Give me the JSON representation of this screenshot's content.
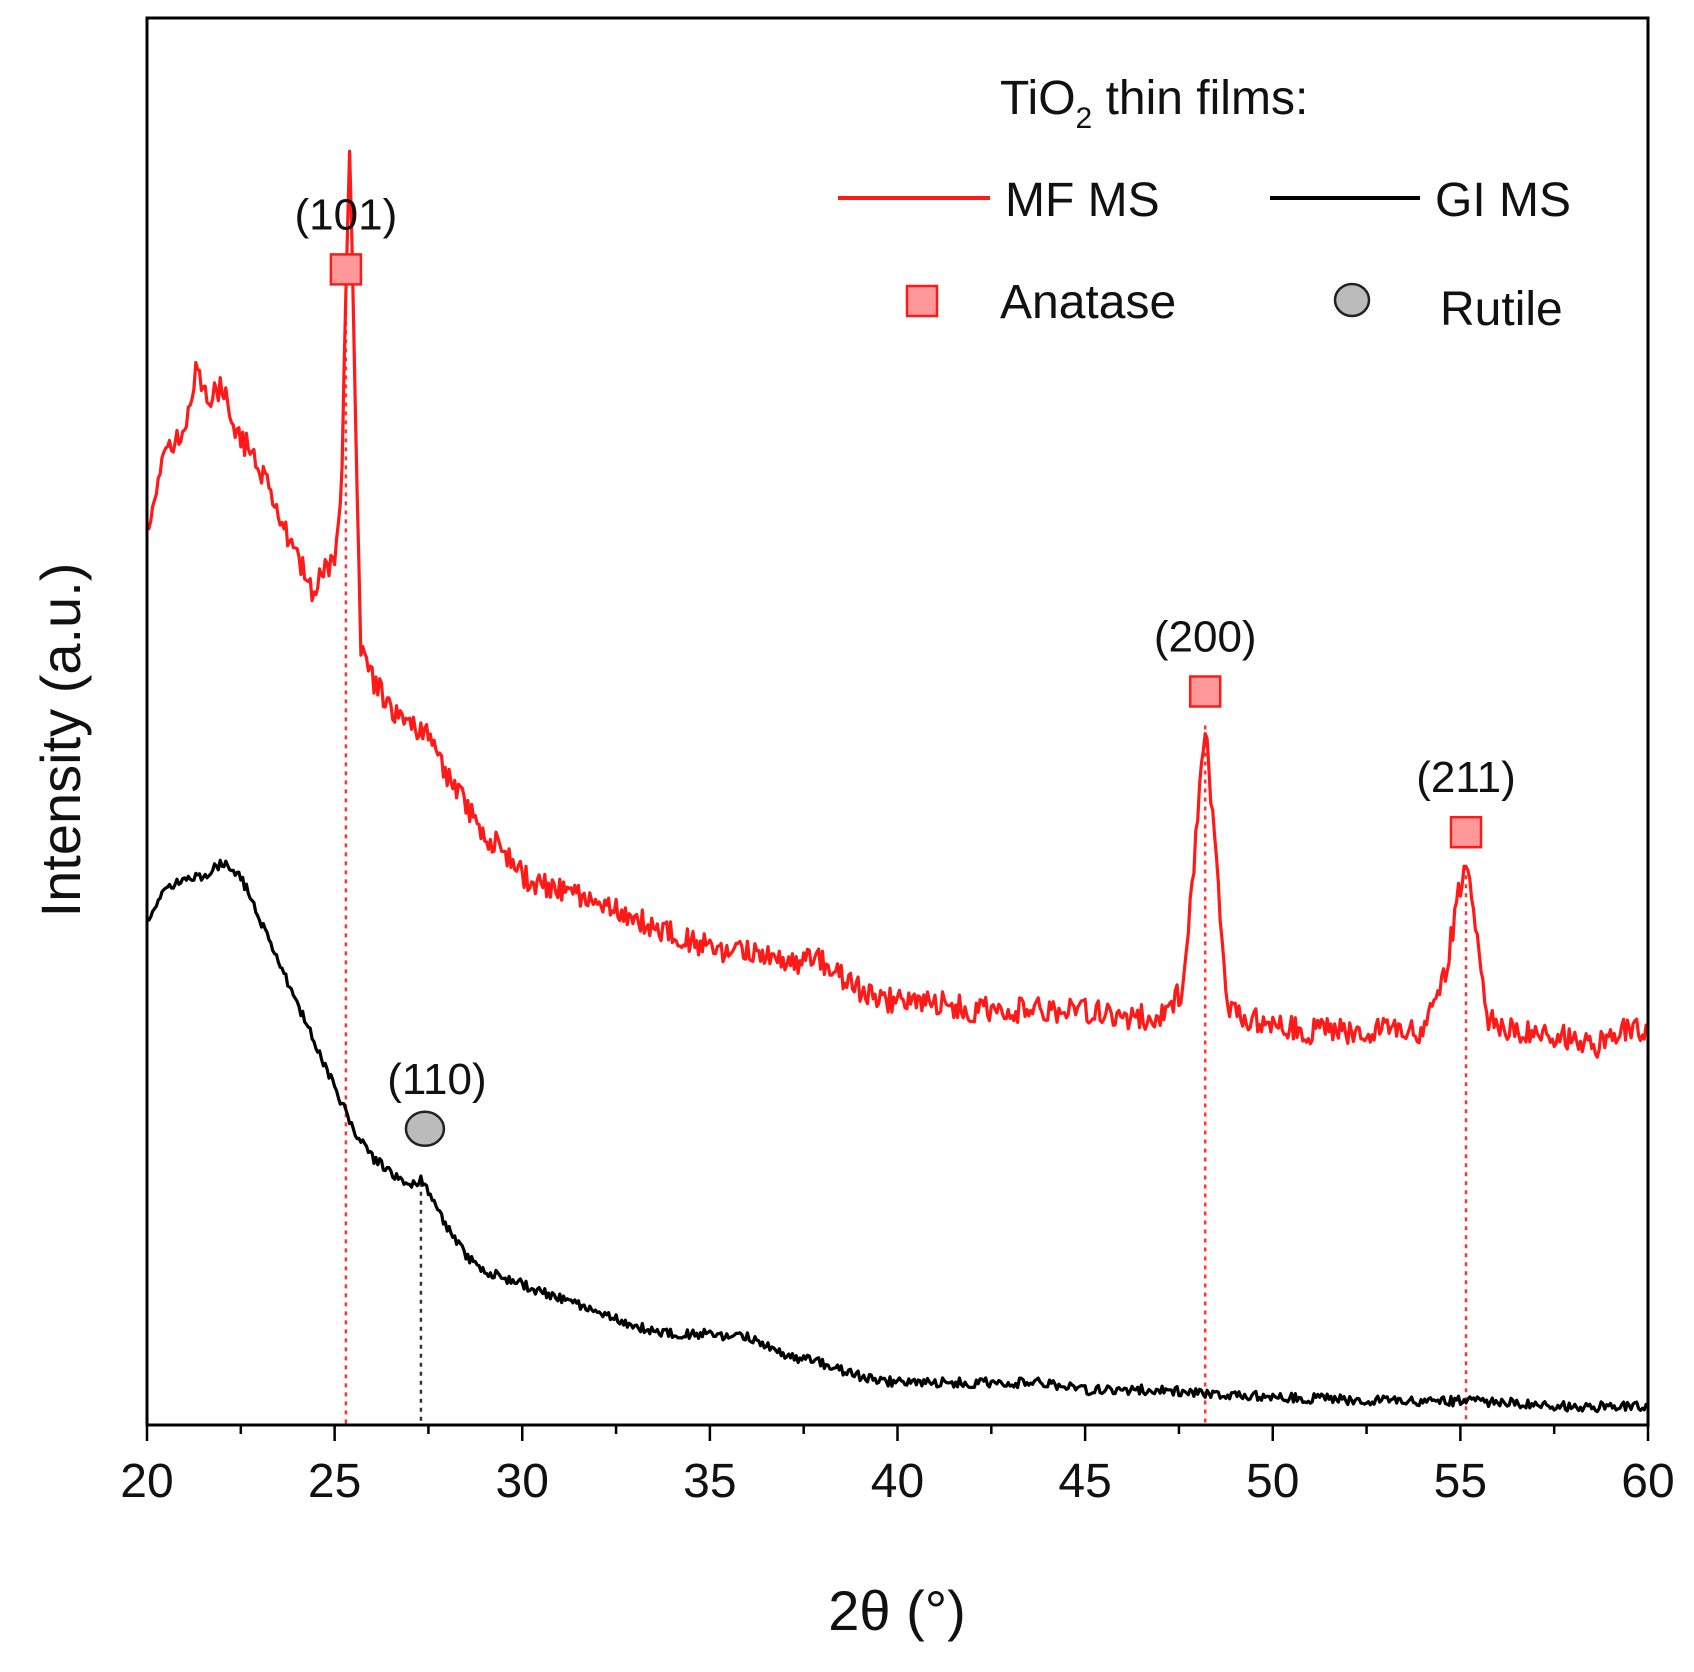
{
  "chart_data": {
    "type": "line",
    "title": "",
    "xlabel": "2θ (°)",
    "ylabel": "Intensity (a.u.)",
    "xlim": [
      20,
      60
    ],
    "ylim": [
      0,
      100
    ],
    "y_ticks_shown": false,
    "x_ticks": [
      "20",
      "25",
      "30",
      "35",
      "40",
      "45",
      "50",
      "55",
      "60"
    ],
    "x_tick_values": [
      20,
      25,
      30,
      35,
      40,
      45,
      50,
      55,
      60
    ],
    "legend": {
      "title_main": "TiO",
      "title_sub": "2",
      "title_rest": " thin films:",
      "series_entries": [
        "MF MS",
        "GI MS"
      ],
      "phase_entries": [
        "Anatase",
        "Rutile"
      ],
      "position": "top-right"
    },
    "series": [
      {
        "name": "MF MS",
        "color": "#ff1a1a",
        "x": [
          20,
          20.5,
          21,
          21.3,
          21.7,
          22,
          22.3,
          22.8,
          23.2,
          23.6,
          24,
          24.4,
          24.7,
          25,
          25.2,
          25.3,
          25.4,
          25.5,
          25.7,
          26,
          26.5,
          27,
          27.5,
          28,
          28.5,
          29,
          29.5,
          30,
          31,
          32,
          33,
          34,
          35,
          36,
          37,
          38,
          38.5,
          39,
          40,
          41,
          42,
          43,
          44,
          45,
          46,
          47,
          47.6,
          47.9,
          48.2,
          48.5,
          48.8,
          49.2,
          50,
          51,
          52,
          53,
          54,
          54.6,
          54.9,
          55.15,
          55.4,
          55.7,
          56.2,
          57,
          58,
          58.7,
          59.3,
          60
        ],
        "y": [
          64,
          69,
          71,
          75,
          73,
          74,
          71,
          69,
          67,
          64,
          62,
          59,
          61,
          61,
          68,
          80,
          91,
          79,
          55,
          53,
          51,
          50,
          49,
          46,
          44,
          42,
          41,
          39,
          38,
          37,
          36,
          35,
          34,
          33.5,
          33,
          33,
          32,
          31,
          30,
          30,
          29.5,
          29.5,
          29.5,
          29.5,
          29,
          29,
          31,
          40,
          50,
          40,
          30,
          29,
          28.5,
          28,
          28,
          28,
          28,
          32,
          37,
          40,
          35,
          29,
          28,
          28,
          27.5,
          27,
          28,
          28
        ]
      },
      {
        "name": "GI MS",
        "color": "#000000",
        "x": [
          20,
          20.5,
          21,
          21.5,
          22,
          22.5,
          23,
          23.5,
          24,
          24.5,
          25,
          25.5,
          26,
          26.5,
          27,
          27.3,
          27.6,
          28,
          28.5,
          29,
          30,
          31,
          32,
          33,
          34,
          35,
          36,
          37,
          38,
          39,
          40,
          42,
          44,
          45,
          47,
          50,
          53,
          55,
          57,
          58,
          60
        ],
        "y": [
          36,
          38,
          39,
          39,
          40,
          39,
          36,
          33,
          30,
          27,
          24,
          21,
          19,
          18,
          17,
          17.5,
          16,
          14,
          12,
          11,
          10,
          9,
          8,
          7,
          6.5,
          6.5,
          6.2,
          5,
          4.4,
          3.5,
          3,
          3,
          3,
          2.5,
          2.5,
          2,
          1.7,
          1.7,
          1.5,
          1.3,
          1.3
        ]
      }
    ],
    "peaks": [
      {
        "label": "(101)",
        "x": 25.3,
        "series": "MF MS",
        "phase": "Anatase"
      },
      {
        "label": "(200)",
        "x": 48.2,
        "series": "MF MS",
        "phase": "Anatase"
      },
      {
        "label": "(211)",
        "x": 55.15,
        "series": "MF MS",
        "phase": "Anatase"
      },
      {
        "label": "(110)",
        "x": 27.3,
        "series": "GI MS",
        "phase": "Rutile"
      }
    ],
    "phases": {
      "Anatase": {
        "marker": "square",
        "fill": "#ff9999",
        "stroke": "#ff1a1a"
      },
      "Rutile": {
        "marker": "circle",
        "fill": "#bbbbbb",
        "stroke": "#222222"
      }
    }
  }
}
